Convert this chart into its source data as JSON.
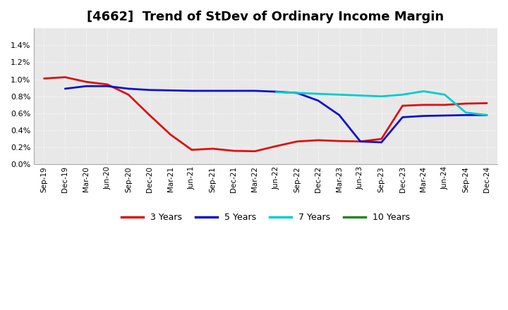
{
  "title": "[4662]  Trend of StDev of Ordinary Income Margin",
  "title_fontsize": 13,
  "background_color": "#ffffff",
  "plot_bg_color": "#e8e8e8",
  "x_labels": [
    "Sep-19",
    "Dec-19",
    "Mar-20",
    "Jun-20",
    "Sep-20",
    "Dec-20",
    "Mar-21",
    "Jun-21",
    "Sep-21",
    "Dec-21",
    "Mar-22",
    "Jun-22",
    "Sep-22",
    "Dec-22",
    "Mar-23",
    "Jun-23",
    "Sep-23",
    "Dec-23",
    "Mar-24",
    "Jun-24",
    "Sep-24",
    "Dec-24"
  ],
  "ylim": [
    0.0,
    0.016
  ],
  "ytick_values": [
    0.0,
    0.002,
    0.004,
    0.006,
    0.008,
    0.01,
    0.012,
    0.014
  ],
  "series": {
    "3 Years": {
      "color": "#dd1111",
      "linewidth": 2.0,
      "values": [
        0.0101,
        0.01025,
        0.0097,
        0.0094,
        0.0082,
        0.0058,
        0.0035,
        0.00172,
        0.00185,
        0.0016,
        0.00155,
        0.00215,
        0.0027,
        0.00285,
        0.00275,
        0.0027,
        0.003,
        0.0069,
        0.007,
        0.007,
        0.00715,
        0.0072
      ]
    },
    "5 Years": {
      "color": "#1111cc",
      "linewidth": 2.0,
      "values": [
        null,
        0.0089,
        0.0092,
        0.0092,
        0.0089,
        0.00875,
        0.0087,
        0.00865,
        0.00865,
        0.00865,
        0.00865,
        0.00855,
        0.0084,
        0.0075,
        0.0058,
        0.0027,
        0.0026,
        0.00555,
        0.0057,
        0.00575,
        0.0058,
        0.0058
      ]
    },
    "7 Years": {
      "color": "#00cccc",
      "linewidth": 2.0,
      "values": [
        null,
        null,
        null,
        null,
        null,
        null,
        null,
        null,
        null,
        null,
        null,
        0.0085,
        0.0084,
        0.0083,
        0.0082,
        0.0081,
        0.008,
        0.0082,
        0.0086,
        0.0082,
        0.0061,
        0.0058
      ]
    },
    "10 Years": {
      "color": "#228822",
      "linewidth": 2.0,
      "values": [
        null,
        null,
        null,
        null,
        null,
        null,
        null,
        null,
        null,
        null,
        null,
        null,
        null,
        null,
        null,
        null,
        null,
        null,
        null,
        null,
        null,
        null
      ]
    }
  },
  "legend_labels": [
    "3 Years",
    "5 Years",
    "7 Years",
    "10 Years"
  ],
  "legend_colors": [
    "#dd1111",
    "#1111cc",
    "#00cccc",
    "#228822"
  ]
}
